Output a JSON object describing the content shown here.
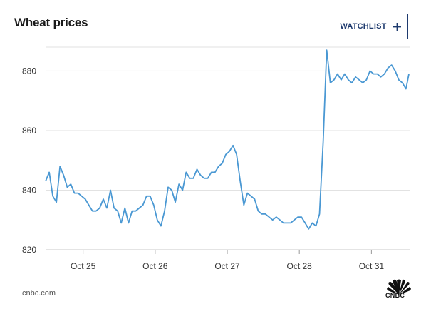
{
  "header": {
    "title": "Wheat prices",
    "watchlist_label": "WATCHLIST"
  },
  "footer": {
    "source": "cnbc.com",
    "logo_text": "CNBC"
  },
  "colors": {
    "line": "#4a98d3",
    "grid": "#e2e2e2",
    "accent": "#1e3a6e"
  },
  "chart_data": {
    "type": "line",
    "title": "Wheat prices",
    "xlabel": "",
    "ylabel": "",
    "ylim": [
      820,
      888
    ],
    "yticks": [
      820,
      840,
      860,
      880
    ],
    "xlim": [
      0,
      5.05
    ],
    "xticks": [
      {
        "x": 0.52,
        "label": "Oct 25"
      },
      {
        "x": 1.52,
        "label": "Oct 26"
      },
      {
        "x": 2.52,
        "label": "Oct 27"
      },
      {
        "x": 3.52,
        "label": "Oct 28"
      },
      {
        "x": 4.52,
        "label": "Oct 31"
      }
    ],
    "grid": true,
    "series": [
      {
        "x": [
          0.0,
          0.05,
          0.1,
          0.15,
          0.2,
          0.25,
          0.3,
          0.35,
          0.4,
          0.45,
          0.5,
          0.55,
          0.6,
          0.65,
          0.7,
          0.75,
          0.8,
          0.85,
          0.9,
          0.95,
          1.0,
          1.05,
          1.1,
          1.15,
          1.2,
          1.25,
          1.3,
          1.35,
          1.4,
          1.45,
          1.5,
          1.55,
          1.6,
          1.65,
          1.7,
          1.75,
          1.8,
          1.85,
          1.9,
          1.95,
          2.0,
          2.05,
          2.1,
          2.15,
          2.2,
          2.25,
          2.3,
          2.35,
          2.4,
          2.45,
          2.5,
          2.55,
          2.6,
          2.65,
          2.7,
          2.75,
          2.8,
          2.85,
          2.9,
          2.95,
          3.0,
          3.05,
          3.1,
          3.15,
          3.2,
          3.25,
          3.3,
          3.35,
          3.4,
          3.45,
          3.5,
          3.55,
          3.6,
          3.65,
          3.7,
          3.75,
          3.8,
          3.85,
          3.9,
          3.95,
          4.0,
          4.05,
          4.1,
          4.15,
          4.2,
          4.25,
          4.3,
          4.35,
          4.4,
          4.45,
          4.5,
          4.55,
          4.6,
          4.65,
          4.7,
          4.75,
          4.8,
          4.85,
          4.9,
          4.95,
          5.0,
          5.04
        ],
        "y": [
          843,
          846,
          838,
          836,
          848,
          845,
          841,
          842,
          839,
          839,
          838,
          837,
          835,
          833,
          833,
          834,
          837,
          834,
          840,
          834,
          833,
          829,
          834,
          829,
          833,
          833,
          834,
          835,
          838,
          838,
          835,
          830,
          828,
          833,
          841,
          840,
          836,
          842,
          840,
          846,
          844,
          844,
          847,
          845,
          844,
          844,
          846,
          846,
          848,
          849,
          852,
          853,
          855,
          852,
          843,
          835,
          839,
          838,
          837,
          833,
          832,
          832,
          831,
          830,
          831,
          830,
          829,
          829,
          829,
          830,
          831,
          831,
          829,
          827,
          829,
          828,
          832,
          856,
          887,
          876,
          877,
          879,
          877,
          879,
          877,
          876,
          878,
          877,
          876,
          877,
          880,
          879,
          879,
          878,
          879,
          881,
          882,
          880,
          877,
          876,
          874,
          879
        ]
      }
    ]
  }
}
